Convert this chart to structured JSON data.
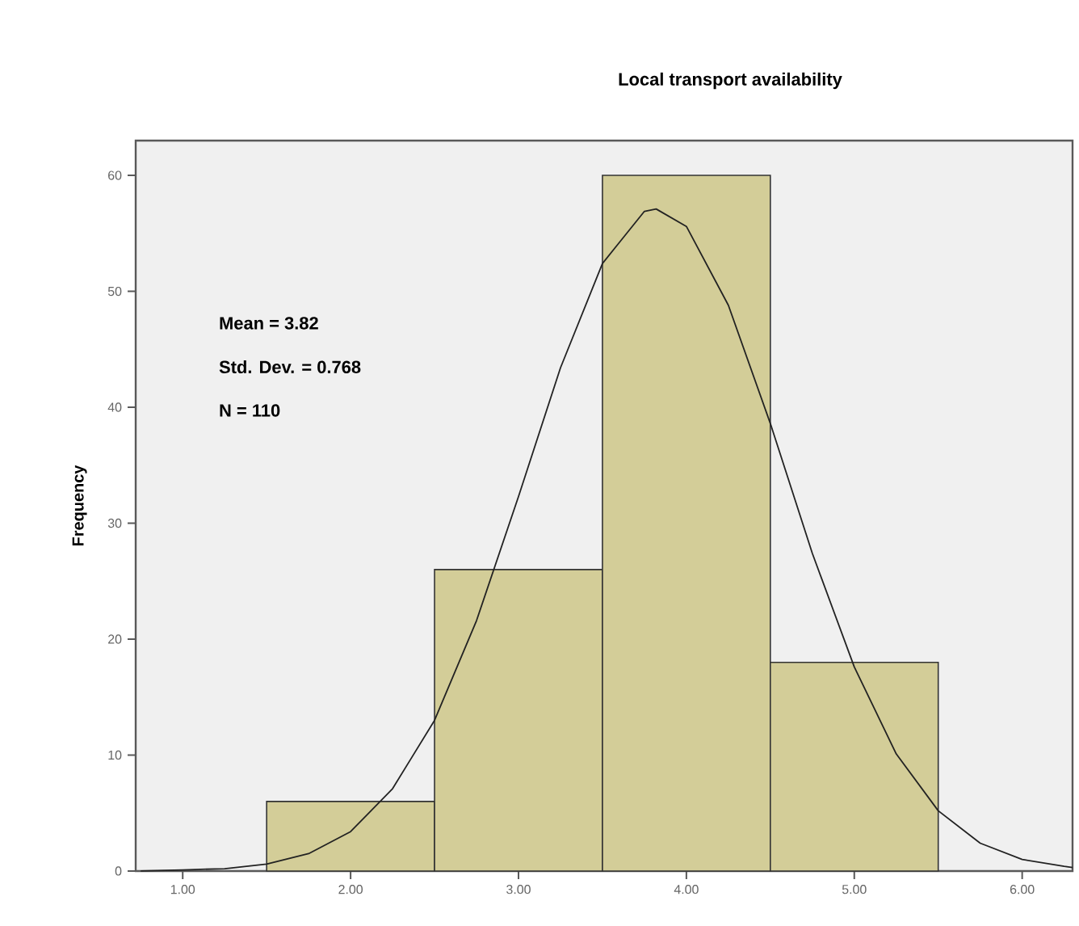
{
  "chart_data": {
    "type": "histogram",
    "title": "Local transport availability",
    "ylabel": "Frequency",
    "bins": [
      1.5,
      2.5,
      3.5,
      4.5,
      5.5
    ],
    "values": [
      6,
      26,
      60,
      18
    ],
    "color": "#d3cd98",
    "series": [
      {
        "type": "line",
        "color": "#222222",
        "x": [
          0.75,
          1.0,
          1.25,
          1.5,
          1.75,
          2.0,
          2.25,
          2.5,
          2.75,
          3.0,
          3.25,
          3.5,
          3.75,
          3.82,
          4.0,
          4.25,
          4.5,
          4.75,
          5.0,
          5.25,
          5.5,
          5.75,
          6.0,
          6.25,
          6.3
        ],
        "values": [
          0.0,
          0.1,
          0.2,
          0.6,
          1.5,
          3.4,
          7.1,
          13.0,
          21.6,
          32.3,
          43.4,
          52.4,
          56.9,
          57.1,
          55.6,
          48.8,
          38.6,
          27.4,
          17.6,
          10.1,
          5.2,
          2.4,
          1.0,
          0.4,
          0.3
        ]
      }
    ],
    "annotations": [
      "Mean = 3.82",
      "Std. Dev. = 0.768",
      "N = 110"
    ],
    "xlim": [
      0.72,
      6.3
    ],
    "ylim": [
      0,
      63
    ],
    "xticks": [
      {
        "value": 1,
        "label": "1.00"
      },
      {
        "value": 2,
        "label": "2.00"
      },
      {
        "value": 3,
        "label": "3.00"
      },
      {
        "value": 4,
        "label": "4.00"
      },
      {
        "value": 5,
        "label": "5.00"
      },
      {
        "value": 6,
        "label": "6.00"
      }
    ],
    "yticks": [
      0,
      10,
      20,
      30,
      40,
      50,
      60
    ],
    "grid": false
  }
}
